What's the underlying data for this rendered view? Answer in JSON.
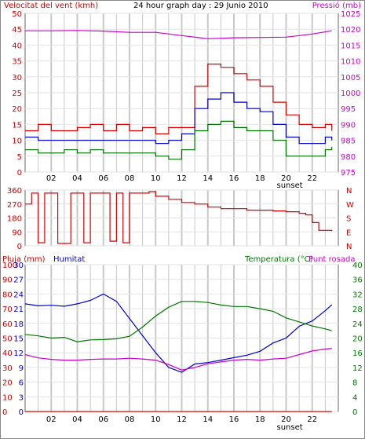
{
  "header": {
    "title": "24 hour graph day : 29 Junio 2010",
    "left_label": "Velocitat del vent (kmh)",
    "right_label": "Pressió (mb)"
  },
  "colors": {
    "red": "#dd0000",
    "green": "#007700",
    "blue": "#0000cc",
    "magenta": "#cc00cc",
    "grid": "#c8c8c8"
  },
  "chart_data": [
    {
      "type": "line",
      "name": "wind-pressure",
      "xlim": [
        0,
        24
      ],
      "ylabel_left": "Velocitat del vent (kmh)",
      "ylabel_right": "Pressió (mb)",
      "ylim_left": [
        0,
        50
      ],
      "ylim_right": [
        975,
        1025
      ],
      "yticks_left": [
        0,
        5,
        10,
        15,
        20,
        25,
        30,
        35,
        40,
        45,
        50
      ],
      "yticks_right": [
        975,
        980,
        985,
        990,
        995,
        1000,
        1005,
        1010,
        1015,
        1020,
        1025
      ],
      "xtick_labels": [
        "02",
        "04",
        "06",
        "08",
        "10",
        "12",
        "14",
        "16",
        "18",
        "20",
        "22"
      ],
      "annotation": "sunset",
      "series": [
        {
          "color": "red",
          "axis": "left",
          "x": [
            0,
            1,
            2,
            3,
            4,
            5,
            6,
            7,
            8,
            9,
            10,
            11,
            12,
            13,
            14,
            15,
            16,
            17,
            18,
            19,
            20,
            21,
            22,
            23,
            23.5
          ],
          "y": [
            13,
            15,
            13,
            13,
            14,
            15,
            13,
            15,
            13,
            14,
            12,
            14,
            14,
            27,
            34,
            33,
            31,
            29,
            27,
            22,
            18,
            15,
            14,
            15,
            13
          ]
        },
        {
          "color": "blue",
          "axis": "left",
          "x": [
            0,
            1,
            2,
            3,
            4,
            5,
            6,
            7,
            8,
            9,
            10,
            11,
            12,
            13,
            14,
            15,
            16,
            17,
            18,
            19,
            20,
            21,
            22,
            23,
            23.5
          ],
          "y": [
            11,
            10,
            10,
            10,
            10,
            10,
            10,
            10,
            10,
            10,
            9,
            10,
            12,
            20,
            23,
            25,
            22,
            20,
            19,
            15,
            11,
            9,
            9,
            11,
            10
          ]
        },
        {
          "color": "green",
          "axis": "left",
          "x": [
            0,
            1,
            2,
            3,
            4,
            5,
            6,
            7,
            8,
            9,
            10,
            11,
            12,
            13,
            14,
            15,
            16,
            17,
            18,
            19,
            20,
            21,
            22,
            23,
            23.5
          ],
          "y": [
            7,
            6,
            6,
            7,
            6,
            7,
            6,
            6,
            6,
            6,
            5,
            4,
            7,
            13,
            15,
            16,
            14,
            13,
            13,
            10,
            5,
            5,
            5,
            7,
            8
          ]
        },
        {
          "color": "magenta",
          "axis": "right",
          "x": [
            0,
            2,
            4,
            6,
            8,
            10,
            12,
            14,
            16,
            18,
            20,
            22,
            23.5
          ],
          "y": [
            1019.5,
            1019.5,
            1019.6,
            1019.4,
            1019,
            1019,
            1018,
            1017,
            1017.3,
            1017.4,
            1017.5,
            1018.5,
            1019.5
          ]
        }
      ]
    },
    {
      "type": "line",
      "name": "wind-direction",
      "xlim": [
        0,
        24
      ],
      "ylim": [
        0,
        360
      ],
      "yticks": [
        0,
        90,
        180,
        270,
        360
      ],
      "compass_labels": [
        "N",
        "W",
        "S",
        "E",
        "N"
      ],
      "series": [
        {
          "color": "red",
          "x": [
            0,
            0.5,
            1,
            1.5,
            2,
            2.5,
            3,
            3.5,
            4,
            4.5,
            5,
            5.5,
            6,
            6.5,
            7,
            7.5,
            8,
            8.5,
            9,
            9.5,
            10,
            11,
            12,
            13,
            14,
            15,
            16,
            17,
            18,
            19,
            20,
            21,
            21.5,
            22,
            22.5,
            23,
            23.5
          ],
          "y": [
            270,
            340,
            20,
            340,
            340,
            15,
            15,
            340,
            340,
            20,
            340,
            340,
            340,
            30,
            340,
            20,
            340,
            340,
            340,
            350,
            320,
            300,
            280,
            270,
            250,
            240,
            240,
            230,
            230,
            225,
            220,
            210,
            200,
            150,
            100,
            100,
            95
          ]
        }
      ]
    },
    {
      "type": "line",
      "name": "rain-humidity-temperature",
      "xlim": [
        0,
        24
      ],
      "ylabel_left_outer": "Pluja (mm)",
      "ylabel_left_inner": "Humitat",
      "ylabel_right": "Temperatura (°C)",
      "ylabel_right_2": "Punt rosada",
      "ylim_rain": [
        0,
        100
      ],
      "ylim_humidity": [
        0,
        30
      ],
      "ylim_temperature": [
        0,
        40
      ],
      "yticks_rain": [
        0,
        10,
        20,
        30,
        40,
        50,
        60,
        70,
        80,
        90,
        100
      ],
      "yticks_humidity": [
        0,
        3,
        6,
        9,
        12,
        15,
        18,
        21,
        24,
        27,
        30
      ],
      "yticks_temperature": [
        0,
        4,
        8,
        12,
        16,
        20,
        24,
        28,
        32,
        36,
        40
      ],
      "series": [
        {
          "color": "blue",
          "axis": "humidity",
          "x": [
            0,
            1,
            2,
            3,
            4,
            5,
            6,
            7,
            8,
            9,
            10,
            11,
            12,
            13,
            14,
            15,
            16,
            17,
            18,
            19,
            20,
            21,
            22,
            23,
            23.5
          ],
          "y": [
            22,
            21.6,
            21.7,
            21.5,
            22,
            22.7,
            24,
            22.5,
            19,
            15.5,
            12,
            9,
            8,
            9.7,
            10,
            10.5,
            11,
            11.5,
            12.3,
            14,
            15,
            17.4,
            18.5,
            20.6,
            21.8
          ]
        },
        {
          "color": "green",
          "axis": "temperature",
          "x": [
            0,
            1,
            2,
            3,
            4,
            5,
            6,
            7,
            8,
            9,
            10,
            11,
            12,
            13,
            14,
            15,
            16,
            17,
            18,
            19,
            20,
            21,
            22,
            23,
            23.5
          ],
          "y": [
            21,
            20.6,
            20,
            20.2,
            19,
            19.5,
            19.6,
            19.8,
            20.5,
            23,
            26,
            28.4,
            30,
            30,
            29.7,
            29,
            28.6,
            28.6,
            28,
            27.3,
            25.5,
            24.4,
            23.3,
            22.5,
            22
          ]
        },
        {
          "color": "magenta",
          "axis": "temperature",
          "x": [
            0,
            1,
            2,
            3,
            4,
            5,
            6,
            7,
            8,
            9,
            10,
            11,
            12,
            13,
            14,
            15,
            16,
            17,
            18,
            19,
            20,
            21,
            22,
            23,
            23.5
          ],
          "y": [
            15.5,
            14.6,
            14.2,
            14,
            14,
            14.2,
            14.3,
            14.3,
            14.5,
            14.3,
            14,
            12.8,
            11.3,
            12,
            13,
            13.5,
            14,
            14.2,
            14,
            14.3,
            14.5,
            15.5,
            16.5,
            17,
            17.2
          ]
        },
        {
          "color": "red",
          "axis": "rain",
          "x": [
            0,
            23.5
          ],
          "y": [
            0,
            0
          ]
        }
      ]
    }
  ]
}
